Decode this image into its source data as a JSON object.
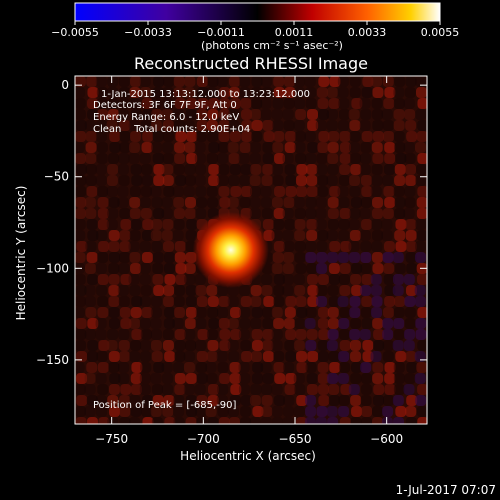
{
  "chart_data": {
    "type": "heatmap",
    "title": "Reconstructed RHESSI Image",
    "xlabel": "Heliocentric X (arcsec)",
    "ylabel": "Heliocentric Y (arcsec)",
    "xlim": [
      -770,
      -578
    ],
    "ylim": [
      -185,
      5
    ],
    "xticks": [
      -750,
      -700,
      -650,
      -600
    ],
    "yticks": [
      0,
      -50,
      -100,
      -150
    ],
    "x_tick_labels": [
      "−750",
      "−700",
      "−650",
      "−600"
    ],
    "y_tick_labels": [
      "0",
      "−50",
      "−100",
      "−150"
    ],
    "colorbar": {
      "min": -0.0055,
      "max": 0.0055,
      "ticks": [
        -0.0055,
        -0.0033,
        -0.0011,
        0.0011,
        0.0033,
        0.0055
      ],
      "tick_labels": [
        "−0.0055",
        "−0.0033",
        "−0.0011",
        "0.0011",
        "0.0033",
        "0.0055"
      ],
      "label": "(photons cm⁻² s⁻¹ asec⁻²)",
      "colors": [
        "#0000ff",
        "#000000",
        "#c00000",
        "#ff8000",
        "#ffffff"
      ]
    },
    "source": {
      "x": -685,
      "y": -90,
      "peak": 0.0055
    },
    "annotations": {
      "time_range": "1-Jan-2015 13:13:12.000 to 13:23:12.000",
      "detectors": "Detectors: 3F 6F 7F 9F, Att 0",
      "energy_range": "Energy Range: 6.0 - 12.0 keV",
      "method_counts": "Clean    Total counts: 2.90E+04",
      "peak_position": "Position of Peak = [-685,-90]"
    },
    "background_color": "#2a0a05"
  },
  "footer": {
    "timestamp": "1-Jul-2017 07:07"
  }
}
